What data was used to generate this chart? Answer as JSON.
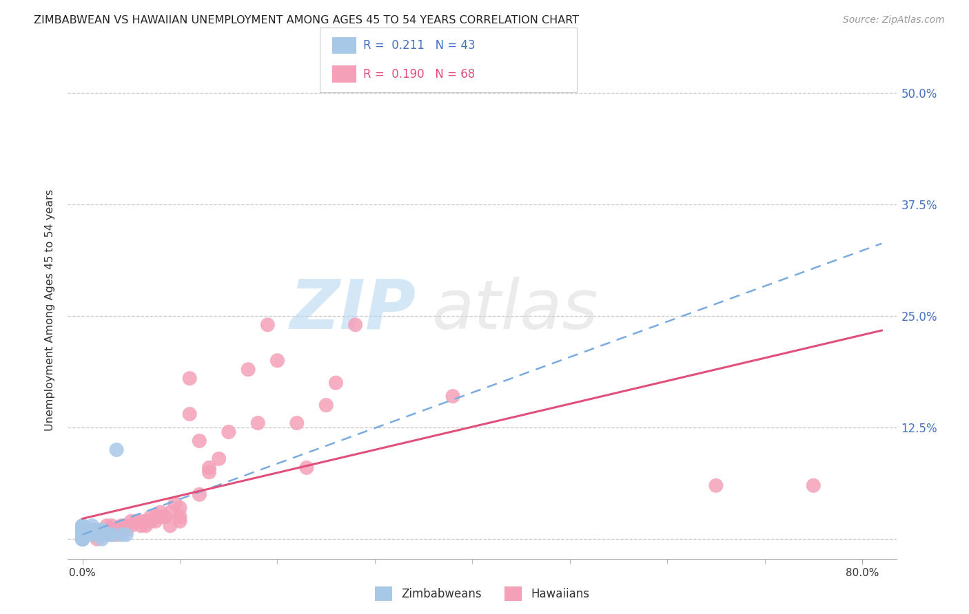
{
  "title": "ZIMBABWEAN VS HAWAIIAN UNEMPLOYMENT AMONG AGES 45 TO 54 YEARS CORRELATION CHART",
  "source": "Source: ZipAtlas.com",
  "xlim": [
    -0.015,
    0.835
  ],
  "ylim": [
    -0.022,
    0.535
  ],
  "zim_R": "0.211",
  "zim_N": "43",
  "haw_R": "0.190",
  "haw_N": "68",
  "zim_color": "#a8c8e8",
  "haw_color": "#f4a0b8",
  "zim_line_color": "#7aabe0",
  "haw_line_color": "#e0507a",
  "ylabel": "Unemployment Among Ages 45 to 54 years",
  "ytick_vals": [
    0.0,
    0.125,
    0.25,
    0.375,
    0.5
  ],
  "ytick_labels": [
    "",
    "12.5%",
    "25.0%",
    "37.5%",
    "50.0%"
  ],
  "xtick_show": [
    0.0,
    0.8
  ],
  "xtick_labels": [
    "0.0%",
    "80.0%"
  ],
  "grid_lines": [
    0.0,
    0.125,
    0.25,
    0.375,
    0.5
  ],
  "watermark_text": "ZIPatlas",
  "legend_label_zim": "Zimbabweans",
  "legend_label_haw": "Hawaiians",
  "zimbabwean_x": [
    0.0,
    0.0,
    0.0,
    0.0,
    0.0,
    0.0,
    0.0,
    0.0,
    0.0,
    0.0,
    0.0,
    0.0,
    0.0,
    0.0,
    0.0,
    0.0,
    0.0,
    0.0,
    0.0,
    0.0,
    0.0,
    0.0,
    0.0,
    0.0,
    0.0,
    0.0,
    0.005,
    0.005,
    0.01,
    0.01,
    0.01,
    0.01,
    0.015,
    0.015,
    0.02,
    0.02,
    0.02,
    0.025,
    0.03,
    0.03,
    0.035,
    0.04,
    0.045
  ],
  "zimbabwean_y": [
    0.0,
    0.0,
    0.0,
    0.0,
    0.0,
    0.0,
    0.0,
    0.0,
    0.0,
    0.0,
    0.0,
    0.005,
    0.005,
    0.005,
    0.005,
    0.005,
    0.005,
    0.01,
    0.01,
    0.01,
    0.01,
    0.01,
    0.01,
    0.015,
    0.015,
    0.015,
    0.01,
    0.01,
    0.005,
    0.01,
    0.01,
    0.015,
    0.005,
    0.01,
    0.0,
    0.01,
    0.01,
    0.005,
    0.005,
    0.005,
    0.1,
    0.005,
    0.005
  ],
  "hawaiian_x": [
    0.0,
    0.0,
    0.0,
    0.0,
    0.0,
    0.0,
    0.0,
    0.0,
    0.0,
    0.0,
    0.01,
    0.015,
    0.02,
    0.02,
    0.02,
    0.025,
    0.025,
    0.025,
    0.03,
    0.03,
    0.03,
    0.035,
    0.035,
    0.04,
    0.04,
    0.04,
    0.045,
    0.045,
    0.05,
    0.05,
    0.055,
    0.06,
    0.06,
    0.065,
    0.065,
    0.07,
    0.07,
    0.075,
    0.075,
    0.08,
    0.08,
    0.085,
    0.09,
    0.09,
    0.095,
    0.1,
    0.1,
    0.1,
    0.11,
    0.11,
    0.12,
    0.12,
    0.13,
    0.13,
    0.14,
    0.15,
    0.17,
    0.18,
    0.19,
    0.2,
    0.22,
    0.23,
    0.25,
    0.26,
    0.28,
    0.38,
    0.65,
    0.75
  ],
  "hawaiian_y": [
    0.0,
    0.0,
    0.0,
    0.0,
    0.0,
    0.0,
    0.0,
    0.005,
    0.005,
    0.01,
    0.01,
    0.0,
    0.005,
    0.005,
    0.01,
    0.01,
    0.01,
    0.015,
    0.005,
    0.01,
    0.015,
    0.005,
    0.01,
    0.01,
    0.01,
    0.015,
    0.01,
    0.015,
    0.015,
    0.02,
    0.02,
    0.015,
    0.02,
    0.015,
    0.02,
    0.02,
    0.025,
    0.02,
    0.025,
    0.025,
    0.03,
    0.025,
    0.015,
    0.03,
    0.04,
    0.035,
    0.02,
    0.025,
    0.14,
    0.18,
    0.11,
    0.05,
    0.075,
    0.08,
    0.09,
    0.12,
    0.19,
    0.13,
    0.24,
    0.2,
    0.13,
    0.08,
    0.15,
    0.175,
    0.24,
    0.16,
    0.06,
    0.06
  ]
}
